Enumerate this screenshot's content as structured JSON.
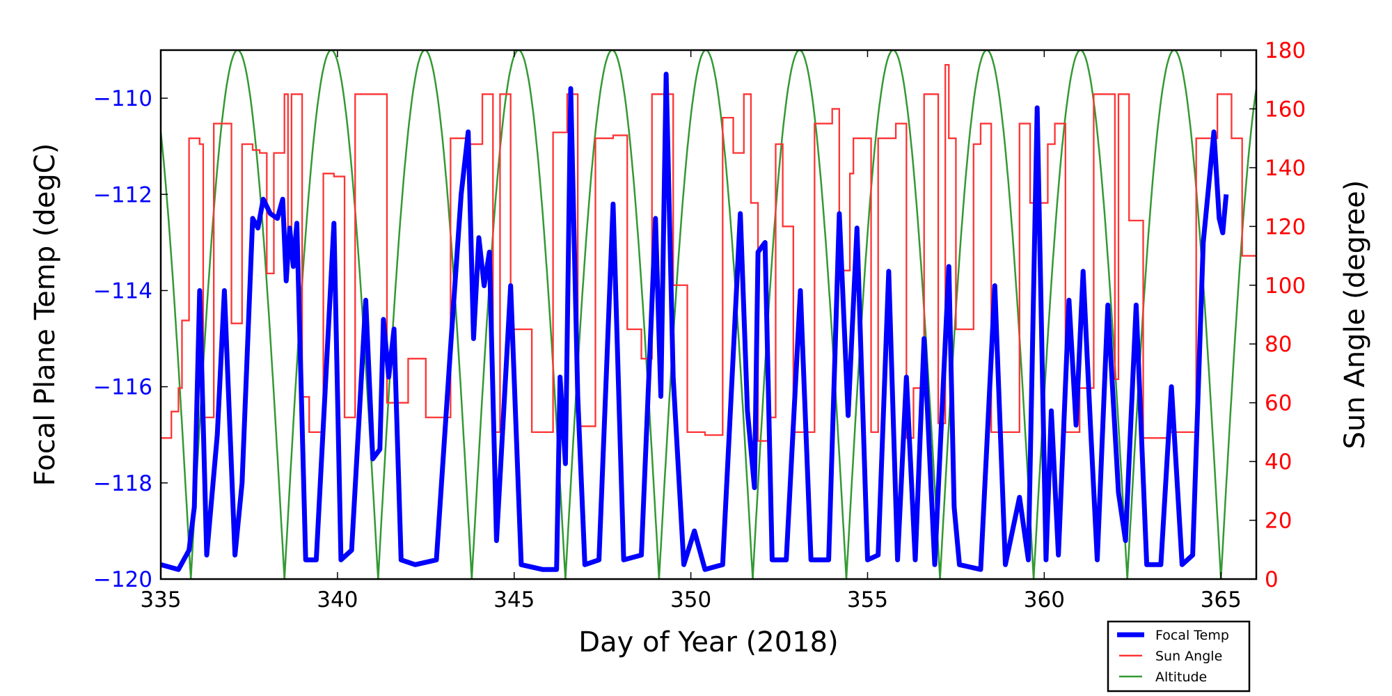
{
  "chart_data": {
    "type": "line",
    "xlabel": "Day of Year (2018)",
    "ylabel_left": "Focal Plane Temp (degC)",
    "ylabel_right": "Sun Angle (degree)",
    "xlim": [
      335,
      366
    ],
    "ylim_left": [
      -120,
      -109
    ],
    "ylim_right": [
      0,
      180
    ],
    "x_ticks": [
      335,
      340,
      345,
      350,
      355,
      360,
      365
    ],
    "x_tick_labels": [
      "335",
      "340",
      "345",
      "350",
      "355",
      "360",
      "365"
    ],
    "y_left_ticks": [
      -120,
      -118,
      -116,
      -114,
      -112,
      -110
    ],
    "y_left_tick_labels": [
      "−120",
      "−118",
      "−116",
      "−114",
      "−112",
      "−110"
    ],
    "y_right_ticks": [
      0,
      20,
      40,
      60,
      80,
      100,
      120,
      140,
      160,
      180
    ],
    "y_right_tick_labels": [
      "0",
      "20",
      "40",
      "60",
      "80",
      "100",
      "120",
      "140",
      "160",
      "180"
    ],
    "grid": false,
    "legend": {
      "placement": "bottom-right outside",
      "entries": [
        "Focal Temp",
        "Sun Angle",
        "Altitude"
      ]
    },
    "colors": {
      "focal_temp": "#0000ff",
      "sun_angle": "#ff3333",
      "altitude": "#339933",
      "left_axis": "#0000ff",
      "right_axis": "#ff0000"
    },
    "series": [
      {
        "name": "Focal Temp",
        "axis": "left",
        "points": [
          [
            335.0,
            -119.7
          ],
          [
            335.5,
            -119.8
          ],
          [
            335.8,
            -119.4
          ],
          [
            335.95,
            -118.5
          ],
          [
            336.1,
            -114
          ],
          [
            336.3,
            -119.5
          ],
          [
            336.6,
            -117
          ],
          [
            336.8,
            -114
          ],
          [
            337.1,
            -119.5
          ],
          [
            337.3,
            -118
          ],
          [
            337.6,
            -112.5
          ],
          [
            337.75,
            -112.7
          ],
          [
            337.9,
            -112.1
          ],
          [
            338.1,
            -112.4
          ],
          [
            338.3,
            -112.5
          ],
          [
            338.45,
            -112.1
          ],
          [
            338.55,
            -113.8
          ],
          [
            338.65,
            -112.7
          ],
          [
            338.75,
            -113.5
          ],
          [
            338.85,
            -112.6
          ],
          [
            339.1,
            -119.6
          ],
          [
            339.4,
            -119.6
          ],
          [
            339.9,
            -112.6
          ],
          [
            340.1,
            -119.6
          ],
          [
            340.4,
            -119.4
          ],
          [
            340.8,
            -114.2
          ],
          [
            341.0,
            -117.5
          ],
          [
            341.2,
            -117.3
          ],
          [
            341.3,
            -114.6
          ],
          [
            341.45,
            -115.8
          ],
          [
            341.6,
            -114.8
          ],
          [
            341.8,
            -119.6
          ],
          [
            342.2,
            -119.7
          ],
          [
            342.8,
            -119.6
          ],
          [
            343.2,
            -115.2
          ],
          [
            343.5,
            -112
          ],
          [
            343.7,
            -110.7
          ],
          [
            343.85,
            -115
          ],
          [
            344.0,
            -112.9
          ],
          [
            344.15,
            -113.9
          ],
          [
            344.3,
            -113.2
          ],
          [
            344.5,
            -119.2
          ],
          [
            344.9,
            -113.9
          ],
          [
            345.2,
            -119.7
          ],
          [
            345.8,
            -119.8
          ],
          [
            346.2,
            -119.8
          ],
          [
            346.3,
            -115.8
          ],
          [
            346.45,
            -117.6
          ],
          [
            346.6,
            -109.8
          ],
          [
            346.8,
            -116.2
          ],
          [
            347.0,
            -119.7
          ],
          [
            347.4,
            -119.6
          ],
          [
            347.8,
            -112.2
          ],
          [
            348.1,
            -119.6
          ],
          [
            348.6,
            -119.5
          ],
          [
            349.0,
            -112.5
          ],
          [
            349.15,
            -116.2
          ],
          [
            349.3,
            -109.5
          ],
          [
            349.5,
            -115.8
          ],
          [
            349.8,
            -119.7
          ],
          [
            350.1,
            -119.0
          ],
          [
            350.4,
            -119.8
          ],
          [
            350.9,
            -119.7
          ],
          [
            351.4,
            -112.4
          ],
          [
            351.6,
            -116.5
          ],
          [
            351.8,
            -118.1
          ],
          [
            351.9,
            -113.2
          ],
          [
            352.1,
            -113
          ],
          [
            352.3,
            -119.6
          ],
          [
            352.7,
            -119.6
          ],
          [
            353.1,
            -114
          ],
          [
            353.4,
            -119.6
          ],
          [
            353.9,
            -119.6
          ],
          [
            354.2,
            -112.4
          ],
          [
            354.45,
            -116.6
          ],
          [
            354.7,
            -112.7
          ],
          [
            355.0,
            -119.6
          ],
          [
            355.3,
            -119.5
          ],
          [
            355.6,
            -113.6
          ],
          [
            355.85,
            -119.6
          ],
          [
            356.1,
            -115.8
          ],
          [
            356.35,
            -119.6
          ],
          [
            356.6,
            -115
          ],
          [
            356.9,
            -119.7
          ],
          [
            357.3,
            -113.5
          ],
          [
            357.45,
            -118.5
          ],
          [
            357.6,
            -119.7
          ],
          [
            358.2,
            -119.8
          ],
          [
            358.6,
            -113.9
          ],
          [
            358.9,
            -119.7
          ],
          [
            359.3,
            -118.3
          ],
          [
            359.55,
            -119.6
          ],
          [
            359.8,
            -110.2
          ],
          [
            360.05,
            -119.6
          ],
          [
            360.2,
            -116.5
          ],
          [
            360.4,
            -119.5
          ],
          [
            360.7,
            -114.2
          ],
          [
            360.9,
            -116.8
          ],
          [
            361.1,
            -113.6
          ],
          [
            361.3,
            -116.7
          ],
          [
            361.5,
            -119.6
          ],
          [
            361.8,
            -114.3
          ],
          [
            362.1,
            -118.2
          ],
          [
            362.3,
            -119.2
          ],
          [
            362.6,
            -114.3
          ],
          [
            362.9,
            -119.7
          ],
          [
            363.3,
            -119.7
          ],
          [
            363.6,
            -116
          ],
          [
            363.9,
            -119.7
          ],
          [
            364.2,
            -119.5
          ],
          [
            364.5,
            -113
          ],
          [
            364.8,
            -110.7
          ],
          [
            364.95,
            -112.5
          ],
          [
            365.05,
            -112.8
          ],
          [
            365.15,
            -112
          ]
        ]
      },
      {
        "name": "Sun Angle",
        "axis": "right",
        "steps": [
          [
            335.0,
            48
          ],
          [
            335.3,
            57
          ],
          [
            335.5,
            65
          ],
          [
            335.6,
            88
          ],
          [
            335.8,
            150
          ],
          [
            336.1,
            148
          ],
          [
            336.2,
            55
          ],
          [
            336.5,
            155
          ],
          [
            337.0,
            87
          ],
          [
            337.3,
            148
          ],
          [
            337.6,
            146
          ],
          [
            337.8,
            145
          ],
          [
            338.0,
            104
          ],
          [
            338.2,
            145
          ],
          [
            338.5,
            165
          ],
          [
            338.6,
            112
          ],
          [
            338.7,
            165
          ],
          [
            339.0,
            62
          ],
          [
            339.2,
            50
          ],
          [
            339.6,
            138
          ],
          [
            339.9,
            137
          ],
          [
            340.2,
            55
          ],
          [
            340.5,
            165
          ],
          [
            341.0,
            165
          ],
          [
            341.2,
            165
          ],
          [
            341.4,
            60
          ],
          [
            342.0,
            75
          ],
          [
            342.5,
            55
          ],
          [
            343.2,
            150
          ],
          [
            343.7,
            148
          ],
          [
            344.1,
            165
          ],
          [
            344.4,
            50
          ],
          [
            344.6,
            165
          ],
          [
            344.9,
            85
          ],
          [
            345.5,
            50
          ],
          [
            346.1,
            152
          ],
          [
            346.5,
            165
          ],
          [
            346.8,
            52
          ],
          [
            347.3,
            150
          ],
          [
            347.8,
            151
          ],
          [
            348.2,
            85
          ],
          [
            348.6,
            75
          ],
          [
            348.9,
            165
          ],
          [
            349.5,
            100
          ],
          [
            349.9,
            50
          ],
          [
            350.4,
            49
          ],
          [
            350.9,
            157
          ],
          [
            351.2,
            145
          ],
          [
            351.5,
            165
          ],
          [
            351.7,
            128
          ],
          [
            351.9,
            47
          ],
          [
            352.2,
            55
          ],
          [
            352.4,
            148
          ],
          [
            352.6,
            120
          ],
          [
            352.9,
            50
          ],
          [
            353.5,
            155
          ],
          [
            354.0,
            160
          ],
          [
            354.2,
            105
          ],
          [
            354.5,
            138
          ],
          [
            354.6,
            150
          ],
          [
            355.1,
            50
          ],
          [
            355.3,
            150
          ],
          [
            355.8,
            155
          ],
          [
            356.1,
            48
          ],
          [
            356.3,
            65
          ],
          [
            356.6,
            165
          ],
          [
            357.0,
            53
          ],
          [
            357.2,
            175
          ],
          [
            357.3,
            150
          ],
          [
            357.5,
            85
          ],
          [
            358.0,
            148
          ],
          [
            358.2,
            155
          ],
          [
            358.5,
            50
          ],
          [
            359.0,
            50
          ],
          [
            359.3,
            155
          ],
          [
            359.6,
            128
          ],
          [
            360.1,
            148
          ],
          [
            360.3,
            155
          ],
          [
            360.6,
            50
          ],
          [
            361.0,
            65
          ],
          [
            361.4,
            165
          ],
          [
            362.0,
            68
          ],
          [
            362.1,
            165
          ],
          [
            362.4,
            122
          ],
          [
            362.8,
            48
          ],
          [
            363.5,
            50
          ],
          [
            364.3,
            150
          ],
          [
            364.9,
            165
          ],
          [
            365.3,
            150
          ],
          [
            365.6,
            110
          ],
          [
            366.0,
            110
          ]
        ]
      },
      {
        "name": "Altitude",
        "axis": "right",
        "minima_days": [
          338.5,
          341.15,
          343.8,
          346.45,
          349.1,
          351.75,
          354.4,
          357.05,
          359.7,
          362.35,
          365.0
        ],
        "max_value": 180
      }
    ]
  }
}
